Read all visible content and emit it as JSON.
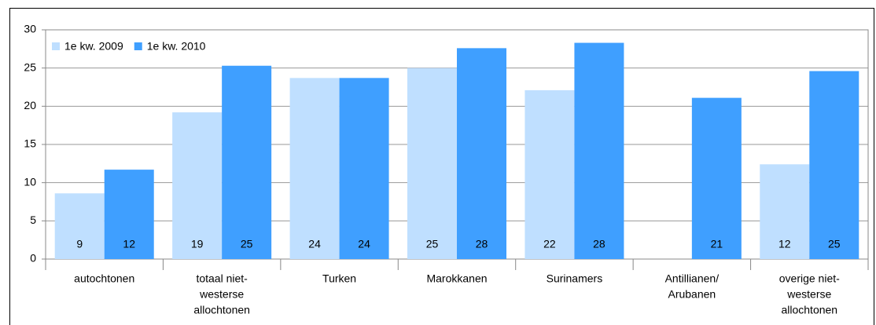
{
  "chart_data": {
    "type": "bar",
    "categories": [
      [
        "autochtonen"
      ],
      [
        "totaal niet-",
        "westerse",
        "allochtonen"
      ],
      [
        "Turken"
      ],
      [
        "Marokkanen"
      ],
      [
        "Surinamers"
      ],
      [
        "Antillianen/",
        "Arubanen"
      ],
      [
        "overige niet-",
        "westerse",
        "allochtonen"
      ]
    ],
    "series": [
      {
        "name": "1e kw. 2009",
        "color": "#bfdfff",
        "values": [
          8.6,
          19.2,
          23.7,
          25.0,
          22.1,
          null,
          12.4
        ],
        "value_labels": [
          "9",
          "19",
          "24",
          "25",
          "22",
          null,
          "12"
        ]
      },
      {
        "name": "1e kw. 2010",
        "color": "#3f9fff",
        "values": [
          11.7,
          25.3,
          23.7,
          27.6,
          28.3,
          21.1,
          24.6
        ],
        "value_labels": [
          "12",
          "25",
          "24",
          "28",
          "28",
          "21",
          "25"
        ]
      }
    ],
    "ylim": [
      0,
      30
    ],
    "yticks": [
      0,
      5,
      10,
      15,
      20,
      25,
      30
    ],
    "grid": true,
    "legend": "top-left"
  }
}
